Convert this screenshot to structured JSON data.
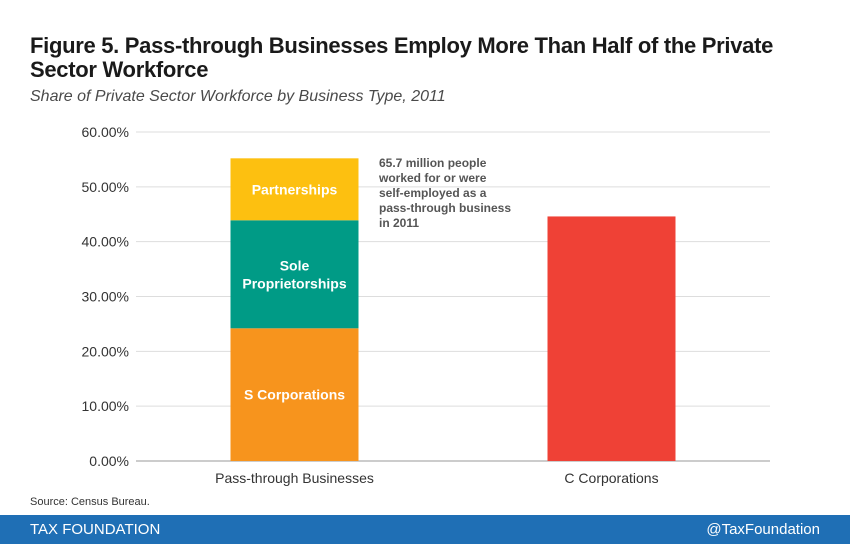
{
  "header": {
    "title": "Figure 5. Pass-through Businesses Employ More Than Half of the Private Sector Workforce",
    "subtitle": "Share of Private Sector Workforce by Business Type, 2011"
  },
  "chart_data": {
    "type": "bar",
    "stacked": true,
    "categories": [
      "Pass-through Businesses",
      "C Corporations"
    ],
    "series": [
      {
        "name": "S Corporations",
        "values": [
          24.2,
          null
        ],
        "color": "#f7941d"
      },
      {
        "name": "Sole Proprietorships",
        "values": [
          19.7,
          null
        ],
        "color": "#009b86"
      },
      {
        "name": "Partnerships",
        "values": [
          11.3,
          null
        ],
        "color": "#fdc010"
      },
      {
        "name": "C Corporations",
        "values": [
          null,
          44.6
        ],
        "color": "#ef4136"
      }
    ],
    "segment_labels": [
      "S Corporations",
      "Sole Proprietorships",
      "Partnerships"
    ],
    "y_ticks": [
      "0.00%",
      "10.00%",
      "20.00%",
      "30.00%",
      "40.00%",
      "50.00%",
      "60.00%"
    ],
    "ylim": [
      0,
      60
    ],
    "grid": true,
    "annotation": "65.7 million people worked for or were self-employed as a pass-through business in 2011"
  },
  "source": "Source: Census Bureau.",
  "footer": {
    "brand": "TAX FOUNDATION",
    "handle": "@TaxFoundation",
    "color": "#1f6fb5"
  }
}
